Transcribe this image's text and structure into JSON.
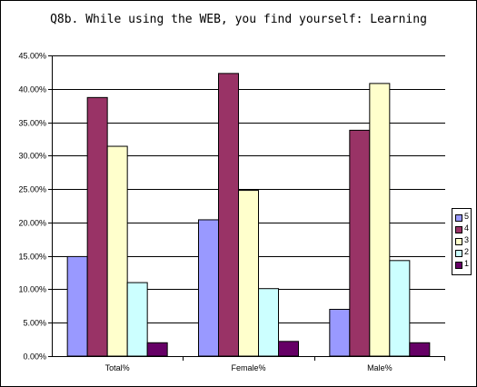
{
  "chart_data": {
    "type": "bar",
    "title": "Q8b.  While using the WEB, you find yourself:  Learning",
    "categories": [
      "Total%",
      "Female%",
      "Male%"
    ],
    "ylim": [
      0,
      0.45
    ],
    "y_ticks": [
      0,
      0.05,
      0.1,
      0.15,
      0.2,
      0.25,
      0.3,
      0.35,
      0.4,
      0.45
    ],
    "y_tick_labels": [
      "0.00%",
      "5.00%",
      "10.00%",
      "15.00%",
      "20.00%",
      "25.00%",
      "30.00%",
      "35.00%",
      "40.00%",
      "45.00%"
    ],
    "grid": true,
    "legend_position": "right",
    "series": [
      {
        "name": "5",
        "color": "#9999ff",
        "values": [
          0.149,
          0.204,
          0.07
        ]
      },
      {
        "name": "4",
        "color": "#993366",
        "values": [
          0.387,
          0.423,
          0.338
        ]
      },
      {
        "name": "3",
        "color": "#ffffcc",
        "values": [
          0.314,
          0.248,
          0.408
        ]
      },
      {
        "name": "2",
        "color": "#ccffff",
        "values": [
          0.11,
          0.101,
          0.143
        ]
      },
      {
        "name": "1",
        "color": "#660066",
        "values": [
          0.02,
          0.022,
          0.02
        ]
      }
    ]
  }
}
